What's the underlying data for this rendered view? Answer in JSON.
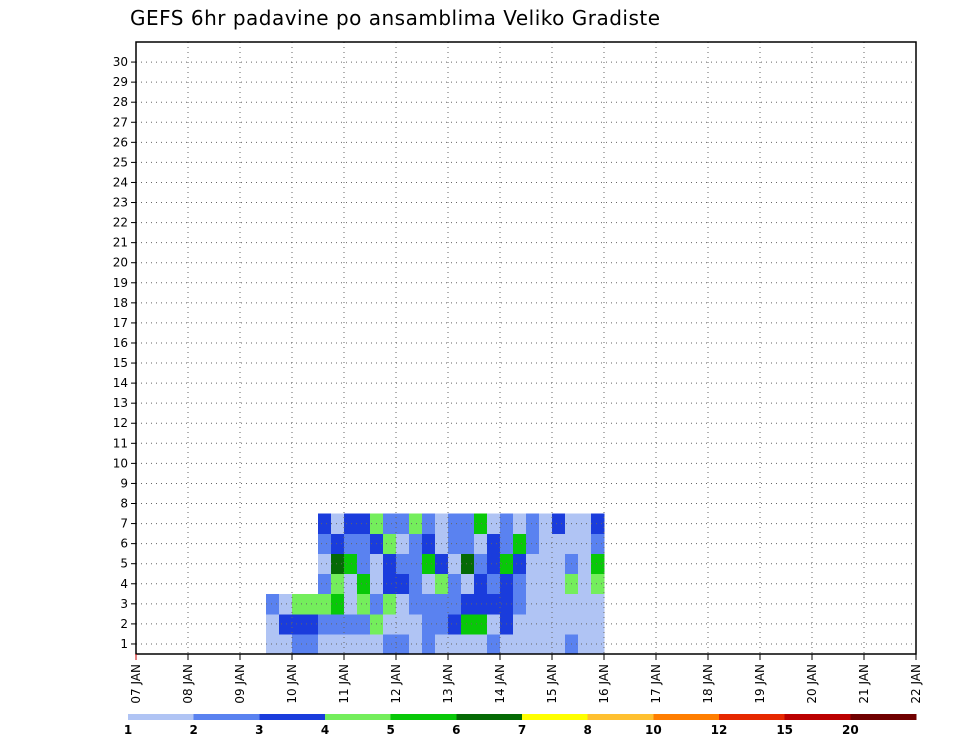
{
  "chart_data": {
    "type": "heatmap",
    "title": "GEFS 6hr padavine po ansamblima Veliko Gradiste",
    "x_tick_labels": [
      "07 JAN",
      "08 JAN",
      "09 JAN",
      "10 JAN",
      "11 JAN",
      "12 JAN",
      "13 JAN",
      "14 JAN",
      "15 JAN",
      "16 JAN",
      "17 JAN",
      "18 JAN",
      "19 JAN",
      "20 JAN",
      "21 JAN",
      "22 JAN"
    ],
    "x_range": [
      "07 JAN 00Z",
      "22 JAN 00Z"
    ],
    "x_step": "6hr",
    "y_tick_labels": [
      "1",
      "2",
      "3",
      "4",
      "5",
      "6",
      "7",
      "8",
      "9",
      "10",
      "11",
      "12",
      "13",
      "14",
      "15",
      "16",
      "17",
      "18",
      "19",
      "20",
      "21",
      "22",
      "23",
      "24",
      "25",
      "26",
      "27",
      "28",
      "29",
      "30"
    ],
    "ylabel": "",
    "xlabel": "",
    "grid": true,
    "legend": {
      "placement": "bottom",
      "boundaries": [
        "1",
        "2",
        "3",
        "4",
        "5",
        "6",
        "7",
        "8",
        "10",
        "12",
        "15",
        "20"
      ],
      "colors": [
        "#b0c4f4",
        "#5a82f0",
        "#1a3cdc",
        "#74ee5c",
        "#08c808",
        "#056a05",
        "#ffff00",
        "#ffc030",
        "#ff7e00",
        "#e62800",
        "#bb0000",
        "#700000"
      ]
    },
    "cells": [
      [
        10,
        0,
        1
      ],
      [
        10,
        1,
        1
      ],
      [
        10,
        2,
        2
      ],
      [
        11,
        0,
        1
      ],
      [
        11,
        1,
        3
      ],
      [
        11,
        2,
        1
      ],
      [
        12,
        0,
        2
      ],
      [
        12,
        1,
        3
      ],
      [
        12,
        2,
        4
      ],
      [
        13,
        0,
        2
      ],
      [
        13,
        1,
        3
      ],
      [
        13,
        2,
        4
      ],
      [
        14,
        0,
        1
      ],
      [
        14,
        1,
        2
      ],
      [
        14,
        2,
        4
      ],
      [
        14,
        3,
        2
      ],
      [
        14,
        4,
        1
      ],
      [
        14,
        5,
        2
      ],
      [
        14,
        6,
        3
      ],
      [
        15,
        0,
        1
      ],
      [
        15,
        1,
        2
      ],
      [
        15,
        2,
        5
      ],
      [
        15,
        3,
        4
      ],
      [
        15,
        4,
        6
      ],
      [
        15,
        5,
        3
      ],
      [
        15,
        6,
        1
      ],
      [
        16,
        0,
        1
      ],
      [
        16,
        1,
        2
      ],
      [
        16,
        2,
        1
      ],
      [
        16,
        3,
        1
      ],
      [
        16,
        4,
        5
      ],
      [
        16,
        5,
        2
      ],
      [
        16,
        6,
        3
      ],
      [
        17,
        0,
        1
      ],
      [
        17,
        1,
        2
      ],
      [
        17,
        2,
        4
      ],
      [
        17,
        3,
        5
      ],
      [
        17,
        4,
        2
      ],
      [
        17,
        5,
        2
      ],
      [
        17,
        6,
        3
      ],
      [
        18,
        0,
        1
      ],
      [
        18,
        1,
        4
      ],
      [
        18,
        2,
        2
      ],
      [
        18,
        3,
        1
      ],
      [
        18,
        4,
        1
      ],
      [
        18,
        5,
        3
      ],
      [
        18,
        6,
        4
      ],
      [
        19,
        0,
        2
      ],
      [
        19,
        1,
        1
      ],
      [
        19,
        2,
        4
      ],
      [
        19,
        3,
        3
      ],
      [
        19,
        4,
        3
      ],
      [
        19,
        5,
        4
      ],
      [
        19,
        6,
        2
      ],
      [
        20,
        0,
        2
      ],
      [
        20,
        1,
        1
      ],
      [
        20,
        2,
        1
      ],
      [
        20,
        3,
        3
      ],
      [
        20,
        4,
        2
      ],
      [
        20,
        5,
        1
      ],
      [
        20,
        6,
        2
      ],
      [
        21,
        0,
        1
      ],
      [
        21,
        1,
        1
      ],
      [
        21,
        2,
        2
      ],
      [
        21,
        3,
        2
      ],
      [
        21,
        4,
        2
      ],
      [
        21,
        5,
        2
      ],
      [
        21,
        6,
        4
      ],
      [
        22,
        0,
        2
      ],
      [
        22,
        1,
        2
      ],
      [
        22,
        2,
        2
      ],
      [
        22,
        3,
        1
      ],
      [
        22,
        4,
        5
      ],
      [
        22,
        5,
        3
      ],
      [
        22,
        6,
        2
      ],
      [
        23,
        0,
        1
      ],
      [
        23,
        1,
        2
      ],
      [
        23,
        2,
        2
      ],
      [
        23,
        3,
        4
      ],
      [
        23,
        4,
        3
      ],
      [
        23,
        5,
        1
      ],
      [
        23,
        6,
        1
      ],
      [
        24,
        0,
        1
      ],
      [
        24,
        1,
        3
      ],
      [
        24,
        2,
        2
      ],
      [
        24,
        3,
        2
      ],
      [
        24,
        4,
        1
      ],
      [
        24,
        5,
        2
      ],
      [
        24,
        6,
        2
      ],
      [
        25,
        0,
        1
      ],
      [
        25,
        1,
        5
      ],
      [
        25,
        2,
        3
      ],
      [
        25,
        3,
        1
      ],
      [
        25,
        4,
        6
      ],
      [
        25,
        5,
        2
      ],
      [
        25,
        6,
        2
      ],
      [
        26,
        0,
        1
      ],
      [
        26,
        1,
        5
      ],
      [
        26,
        2,
        3
      ],
      [
        26,
        3,
        3
      ],
      [
        26,
        4,
        2
      ],
      [
        26,
        5,
        1
      ],
      [
        26,
        6,
        5
      ],
      [
        27,
        0,
        2
      ],
      [
        27,
        1,
        1
      ],
      [
        27,
        2,
        3
      ],
      [
        27,
        3,
        2
      ],
      [
        27,
        4,
        3
      ],
      [
        27,
        5,
        3
      ],
      [
        27,
        6,
        1
      ],
      [
        28,
        0,
        1
      ],
      [
        28,
        1,
        3
      ],
      [
        28,
        2,
        3
      ],
      [
        28,
        3,
        3
      ],
      [
        28,
        4,
        5
      ],
      [
        28,
        5,
        2
      ],
      [
        28,
        6,
        2
      ],
      [
        29,
        0,
        1
      ],
      [
        29,
        1,
        1
      ],
      [
        29,
        2,
        2
      ],
      [
        29,
        3,
        2
      ],
      [
        29,
        4,
        3
      ],
      [
        29,
        5,
        5
      ],
      [
        29,
        6,
        1
      ],
      [
        30,
        0,
        1
      ],
      [
        30,
        1,
        1
      ],
      [
        30,
        2,
        1
      ],
      [
        30,
        3,
        1
      ],
      [
        30,
        4,
        1
      ],
      [
        30,
        5,
        2
      ],
      [
        30,
        6,
        2
      ],
      [
        31,
        0,
        1
      ],
      [
        31,
        1,
        1
      ],
      [
        31,
        2,
        1
      ],
      [
        31,
        3,
        1
      ],
      [
        31,
        4,
        1
      ],
      [
        31,
        5,
        1
      ],
      [
        31,
        6,
        1
      ],
      [
        32,
        0,
        1
      ],
      [
        32,
        1,
        1
      ],
      [
        32,
        2,
        1
      ],
      [
        32,
        3,
        1
      ],
      [
        32,
        4,
        1
      ],
      [
        32,
        5,
        1
      ],
      [
        32,
        6,
        3
      ],
      [
        33,
        0,
        2
      ],
      [
        33,
        1,
        1
      ],
      [
        33,
        2,
        1
      ],
      [
        33,
        3,
        4
      ],
      [
        33,
        4,
        2
      ],
      [
        33,
        5,
        1
      ],
      [
        33,
        6,
        1
      ],
      [
        34,
        0,
        1
      ],
      [
        34,
        1,
        1
      ],
      [
        34,
        2,
        1
      ],
      [
        34,
        3,
        1
      ],
      [
        34,
        4,
        1
      ],
      [
        34,
        5,
        1
      ],
      [
        34,
        6,
        1
      ],
      [
        35,
        0,
        1
      ],
      [
        35,
        1,
        1
      ],
      [
        35,
        2,
        1
      ],
      [
        35,
        3,
        4
      ],
      [
        35,
        4,
        5
      ],
      [
        35,
        5,
        2
      ],
      [
        35,
        6,
        3
      ]
    ]
  }
}
